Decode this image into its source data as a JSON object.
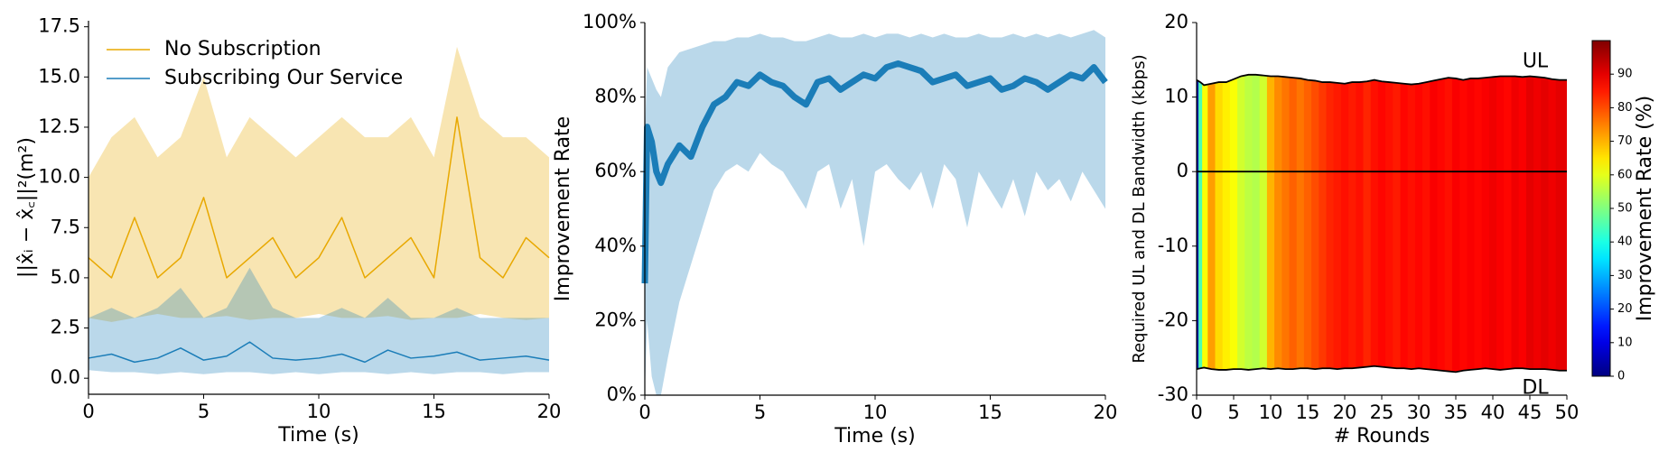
{
  "chart_data": [
    {
      "type": "line",
      "xlabel": "Time (s)",
      "ylabel": "||x̂ᵢ − x̂꜀||²(m²)",
      "legend": "upper left",
      "x": [
        0,
        1,
        2,
        3,
        4,
        5,
        6,
        7,
        8,
        9,
        10,
        11,
        12,
        13,
        14,
        15,
        16,
        17,
        18,
        19,
        20
      ],
      "xlim": [
        0,
        20
      ],
      "xticks": [
        0,
        5,
        10,
        15,
        20
      ],
      "ylim": [
        -0.8,
        17.8
      ],
      "yticks": [
        {
          "value": 0,
          "label": "0.0"
        },
        {
          "value": 2.5,
          "label": "2.5"
        },
        {
          "value": 5,
          "label": "5.0"
        },
        {
          "value": 7.5,
          "label": "7.5"
        },
        {
          "value": 10,
          "label": "10.0"
        },
        {
          "value": 12.5,
          "label": "12.5"
        },
        {
          "value": 15,
          "label": "15.0"
        },
        {
          "value": 17.5,
          "label": "17.5"
        }
      ],
      "series": [
        {
          "name": "No Subscription",
          "color": "#e8a800",
          "values": [
            6,
            5,
            8,
            5,
            6,
            9,
            5,
            6,
            7,
            5,
            6,
            8,
            5,
            6,
            7,
            5,
            13,
            6,
            5,
            7,
            6
          ],
          "low": [
            3,
            2.8,
            3,
            3.2,
            3,
            3,
            3.1,
            2.9,
            3,
            3,
            3.2,
            3,
            3,
            3.1,
            2.9,
            3,
            3,
            3.2,
            3,
            2.9,
            3
          ],
          "high": [
            10,
            12,
            13,
            11,
            12,
            15,
            11,
            13,
            12,
            11,
            12,
            13,
            12,
            12,
            13,
            11,
            16.5,
            13,
            12,
            12,
            11
          ]
        },
        {
          "name": "Subscribing Our Service",
          "color": "#1b7db8",
          "values": [
            1,
            1.2,
            0.8,
            1,
            1.5,
            0.9,
            1.1,
            1.8,
            1,
            0.9,
            1,
            1.2,
            0.8,
            1.4,
            1,
            1.1,
            1.3,
            0.9,
            1,
            1.1,
            0.9
          ],
          "low": [
            0.4,
            0.3,
            0.3,
            0.2,
            0.3,
            0.2,
            0.3,
            0.3,
            0.2,
            0.3,
            0.2,
            0.3,
            0.3,
            0.2,
            0.3,
            0.2,
            0.3,
            0.3,
            0.2,
            0.3,
            0.3
          ],
          "high": [
            3,
            3.5,
            3,
            3.5,
            4.5,
            3,
            3.5,
            5.5,
            3.5,
            3,
            3,
            3.5,
            3,
            4,
            3,
            3,
            3.5,
            3,
            3,
            3,
            3
          ]
        }
      ]
    },
    {
      "type": "line",
      "xlabel": "Time (s)",
      "ylabel": "Improvement Rate",
      "x": [
        0,
        0.1,
        0.3,
        0.5,
        0.7,
        1,
        1.5,
        2,
        2.5,
        3,
        3.5,
        4,
        4.5,
        5,
        5.5,
        6,
        6.5,
        7,
        7.5,
        8,
        8.5,
        9,
        9.5,
        10,
        10.5,
        11,
        11.5,
        12,
        12.5,
        13,
        13.5,
        14,
        14.5,
        15,
        15.5,
        16,
        16.5,
        17,
        17.5,
        18,
        18.5,
        19,
        19.5,
        20
      ],
      "xlim": [
        0,
        20
      ],
      "xticks": [
        0,
        5,
        10,
        15,
        20
      ],
      "ylim": [
        0,
        100
      ],
      "yticks": [
        {
          "value": 0,
          "label": "0%"
        },
        {
          "value": 20,
          "label": "20%"
        },
        {
          "value": 40,
          "label": "40%"
        },
        {
          "value": 60,
          "label": "60%"
        },
        {
          "value": 80,
          "label": "80%"
        },
        {
          "value": 100,
          "label": "100%"
        }
      ],
      "series": [
        {
          "color": "#1b7db8",
          "values": [
            30,
            72,
            68,
            60,
            57,
            62,
            67,
            64,
            72,
            78,
            80,
            84,
            83,
            86,
            84,
            83,
            80,
            78,
            84,
            85,
            82,
            84,
            86,
            85,
            88,
            89,
            88,
            87,
            84,
            85,
            86,
            83,
            84,
            85,
            82,
            83,
            85,
            84,
            82,
            84,
            86,
            85,
            88,
            84
          ],
          "low": [
            0,
            20,
            5,
            0,
            0,
            10,
            25,
            35,
            45,
            55,
            60,
            62,
            60,
            65,
            62,
            60,
            55,
            50,
            60,
            62,
            50,
            58,
            40,
            60,
            62,
            58,
            55,
            60,
            50,
            62,
            58,
            45,
            60,
            55,
            50,
            58,
            48,
            60,
            55,
            58,
            52,
            60,
            55,
            50
          ],
          "high": [
            70,
            88,
            85,
            82,
            80,
            88,
            92,
            93,
            94,
            95,
            95,
            96,
            96,
            97,
            96,
            96,
            95,
            95,
            96,
            97,
            96,
            96,
            97,
            96,
            97,
            97,
            96,
            97,
            96,
            97,
            96,
            96,
            97,
            96,
            96,
            97,
            96,
            97,
            96,
            97,
            96,
            97,
            98,
            96
          ]
        }
      ]
    },
    {
      "type": "area",
      "xlabel": "# Rounds",
      "ylabel": "Required UL and DL Bandwidth (kbps)",
      "colormap": "jet",
      "colorbar_label": "Improvement Rate (%)",
      "annotations": [
        "UL",
        "DL"
      ],
      "x": [
        0,
        0.5,
        1,
        2,
        3,
        4,
        5,
        6,
        7,
        8,
        9,
        10,
        11,
        12,
        13,
        14,
        15,
        16,
        17,
        18,
        19,
        20,
        21,
        22,
        23,
        24,
        25,
        26,
        27,
        28,
        29,
        30,
        31,
        32,
        33,
        34,
        35,
        36,
        37,
        38,
        39,
        40,
        41,
        42,
        43,
        44,
        45,
        46,
        47,
        48,
        49,
        50
      ],
      "xlim": [
        0,
        50
      ],
      "xticks": [
        0,
        5,
        10,
        15,
        20,
        25,
        30,
        35,
        40,
        45,
        50
      ],
      "ylim": [
        -30,
        20
      ],
      "yticks": [
        -30,
        -20,
        -10,
        0,
        10,
        20
      ],
      "ul": [
        12.3,
        12.0,
        11.6,
        11.8,
        12.0,
        12.0,
        12.4,
        12.8,
        13.0,
        13.0,
        12.9,
        12.8,
        12.8,
        12.7,
        12.6,
        12.5,
        12.3,
        12.2,
        12.0,
        12.0,
        11.9,
        11.8,
        12.0,
        12.0,
        12.1,
        12.3,
        12.1,
        12.0,
        11.9,
        11.8,
        11.7,
        11.8,
        12.0,
        12.2,
        12.4,
        12.6,
        12.5,
        12.3,
        12.5,
        12.5,
        12.6,
        12.7,
        12.8,
        12.8,
        12.8,
        12.7,
        12.8,
        12.7,
        12.6,
        12.4,
        12.3,
        12.3
      ],
      "dl": [
        -26.5,
        -26.4,
        -26.3,
        -26.5,
        -26.6,
        -26.6,
        -26.5,
        -26.5,
        -26.6,
        -26.5,
        -26.4,
        -26.5,
        -26.4,
        -26.5,
        -26.5,
        -26.4,
        -26.4,
        -26.5,
        -26.4,
        -26.4,
        -26.5,
        -26.4,
        -26.4,
        -26.3,
        -26.2,
        -26.1,
        -26.2,
        -26.3,
        -26.4,
        -26.4,
        -26.5,
        -26.4,
        -26.5,
        -26.6,
        -26.7,
        -26.8,
        -26.9,
        -26.7,
        -26.6,
        -26.5,
        -26.4,
        -26.5,
        -26.6,
        -26.5,
        -26.4,
        -26.4,
        -26.5,
        -26.5,
        -26.5,
        -26.6,
        -26.7,
        -26.7
      ],
      "rate": [
        5,
        45,
        62,
        72,
        66,
        64,
        62,
        58,
        56,
        55,
        58,
        70,
        74,
        76,
        78,
        76,
        78,
        80,
        82,
        84,
        85,
        86,
        85,
        86,
        84,
        86,
        87,
        86,
        85,
        87,
        86,
        87,
        86,
        88,
        87,
        86,
        88,
        87,
        88,
        87,
        88,
        89,
        88,
        87,
        89,
        88,
        90,
        89,
        90,
        89,
        90,
        90
      ],
      "clim": [
        0,
        100
      ],
      "cticks": [
        0,
        10,
        20,
        30,
        40,
        50,
        60,
        70,
        80,
        90
      ]
    }
  ]
}
